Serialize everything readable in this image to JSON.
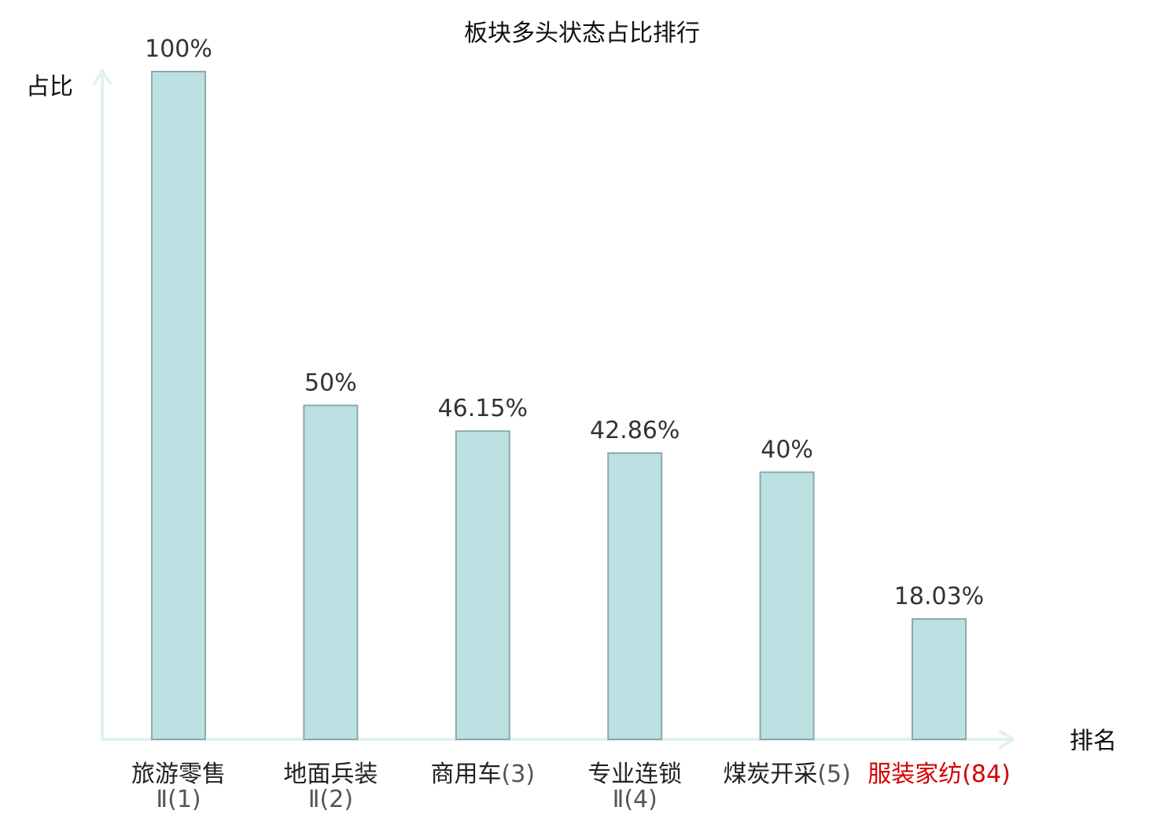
{
  "chart_data": {
    "type": "bar",
    "title": "板块多头状态占比排行",
    "ylabel": "占比",
    "xlabel": "排名",
    "ylim": [
      0,
      100
    ],
    "grid": false,
    "legend": "none",
    "bar_fill": "#bde0e2",
    "bar_stroke": "#8ba9ab",
    "axis_color": "#e0f2f0",
    "highlight_color": "#d40000",
    "categories": [
      {
        "name": "旅游零售",
        "rank": "Ⅱ(1)",
        "highlight": false
      },
      {
        "name": "地面兵装",
        "rank": "Ⅱ(2)",
        "highlight": false
      },
      {
        "name": "商用车",
        "rank": "(3)",
        "highlight": false
      },
      {
        "name": "专业连锁",
        "rank": "Ⅱ(4)",
        "highlight": false
      },
      {
        "name": "煤炭开采",
        "rank": "(5)",
        "highlight": false
      },
      {
        "name": "服装家纺",
        "rank": "(84)",
        "highlight": true
      }
    ],
    "values": [
      100,
      50,
      46.15,
      42.86,
      40,
      18.03
    ],
    "value_labels": [
      "100%",
      "50%",
      "46.15%",
      "42.86%",
      "40%",
      "18.03%"
    ]
  }
}
